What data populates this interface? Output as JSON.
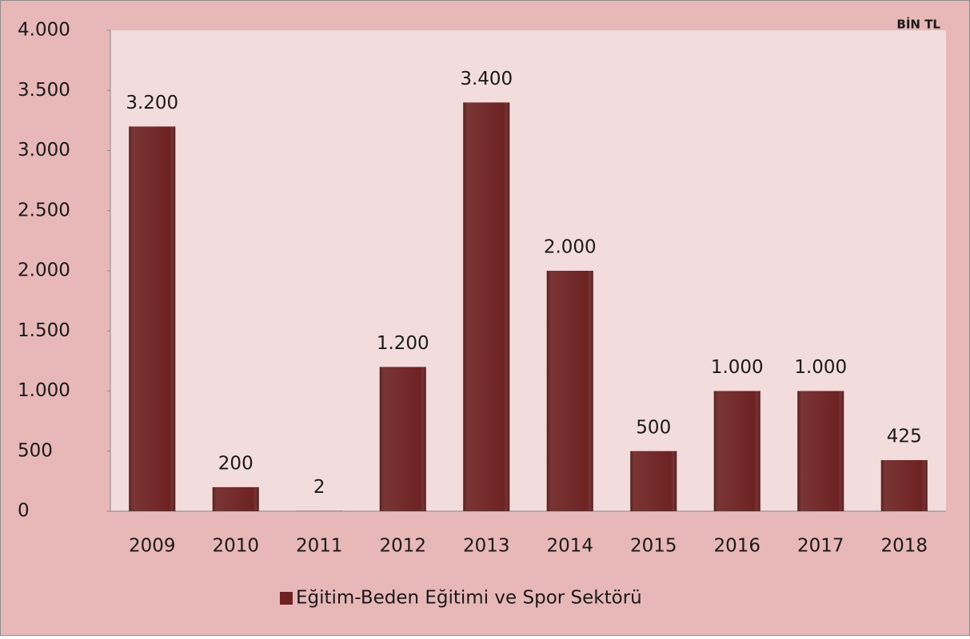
{
  "chart_data": {
    "type": "bar",
    "unit_label": "BİN TL",
    "categories": [
      "2009",
      "2010",
      "2011",
      "2012",
      "2013",
      "2014",
      "2015",
      "2016",
      "2017",
      "2018"
    ],
    "series": [
      {
        "name": "Eğitim-Beden Eğitimi ve Spor Sektörü",
        "color": "#6e2222",
        "values": [
          3200,
          200,
          2,
          1200,
          3400,
          2000,
          500,
          1000,
          1000,
          425
        ],
        "value_labels": [
          "3.200",
          "200",
          "2",
          "1.200",
          "3.400",
          "2.000",
          "500",
          "1.000",
          "1.000",
          "425"
        ]
      }
    ],
    "ylim": [
      0,
      4000
    ],
    "yticks": [
      0,
      500,
      {
        "value": 1000,
        "label": "1.000"
      },
      {
        "value": 1500,
        "label": "1.500"
      },
      {
        "value": 2000,
        "label": "2.000"
      },
      {
        "value": 2500,
        "label": "2.500"
      },
      {
        "value": 3000,
        "label": "3.000"
      },
      {
        "value": 3500,
        "label": "3.500"
      },
      {
        "value": 4000,
        "label": "4.000"
      }
    ],
    "legend": "bottom"
  }
}
